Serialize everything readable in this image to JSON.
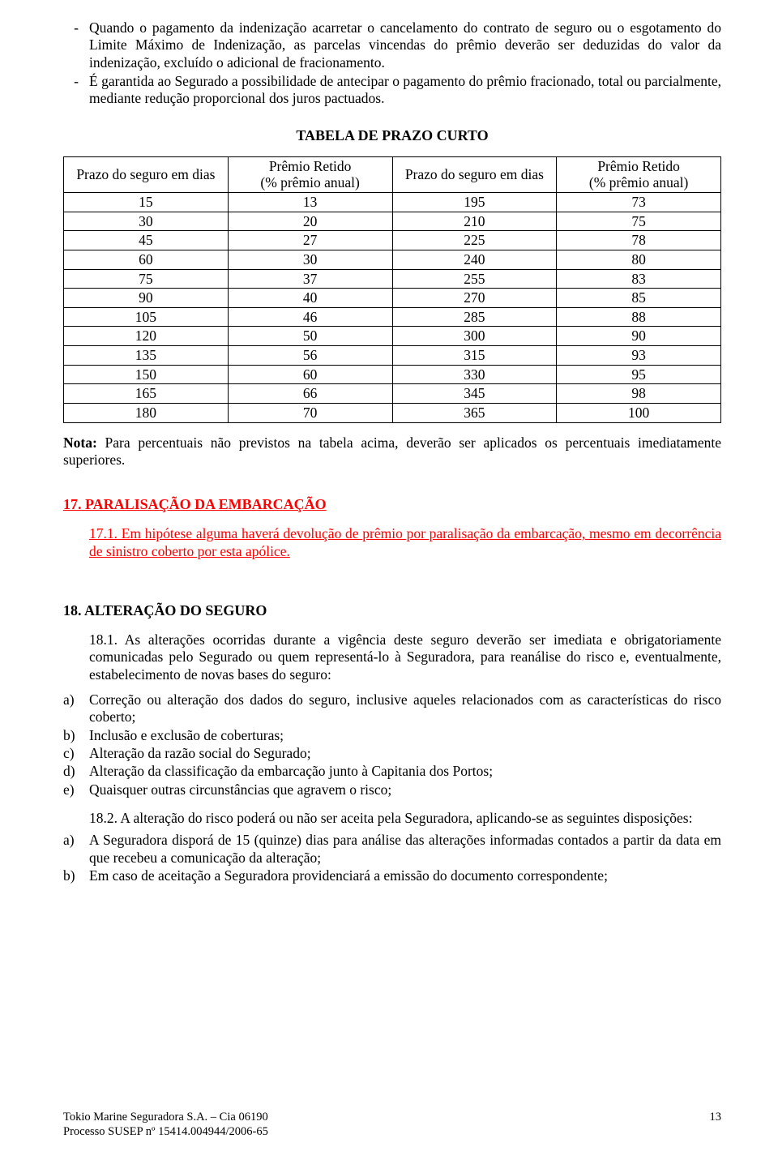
{
  "bullets": {
    "b1": "Quando o pagamento da indenização acarretar o cancelamento do contrato de seguro ou o esgotamento do Limite Máximo de Indenização, as parcelas vincendas do prêmio deverão ser deduzidas do valor da indenização, excluído o adicional de fracionamento.",
    "b2": "É garantida ao Segurado a possibilidade de antecipar o pagamento do prêmio fracionado, total ou parcialmente, mediante redução proporcional dos juros pactuados."
  },
  "table": {
    "title": "TABELA DE PRAZO CURTO",
    "columns": {
      "c1": "Prazo do seguro em dias",
      "c2_line1": "Prêmio Retido",
      "c2_line2": "(% prêmio anual)",
      "c3": "Prazo do seguro em dias",
      "c4_line1": "Prêmio Retido",
      "c4_line2": "(% prêmio anual)"
    },
    "rows": [
      {
        "a": "15",
        "b": "13",
        "c": "195",
        "d": "73"
      },
      {
        "a": "30",
        "b": "20",
        "c": "210",
        "d": "75"
      },
      {
        "a": "45",
        "b": "27",
        "c": "225",
        "d": "78"
      },
      {
        "a": "60",
        "b": "30",
        "c": "240",
        "d": "80"
      },
      {
        "a": "75",
        "b": "37",
        "c": "255",
        "d": "83"
      },
      {
        "a": "90",
        "b": "40",
        "c": "270",
        "d": "85"
      },
      {
        "a": "105",
        "b": "46",
        "c": "285",
        "d": "88"
      },
      {
        "a": "120",
        "b": "50",
        "c": "300",
        "d": "90"
      },
      {
        "a": "135",
        "b": "56",
        "c": "315",
        "d": "93"
      },
      {
        "a": "150",
        "b": "60",
        "c": "330",
        "d": "95"
      },
      {
        "a": "165",
        "b": "66",
        "c": "345",
        "d": "98"
      },
      {
        "a": "180",
        "b": "70",
        "c": "365",
        "d": "100"
      }
    ]
  },
  "nota_label": "Nota:",
  "nota": " Para percentuais não previstos na tabela acima, deverão ser aplicados os percentuais imediatamente  superiores.",
  "sec17": {
    "heading": "17. PARALISAÇÃO DA EMBARCAÇÃO",
    "p1": "17.1. Em  hipótese alguma haverá devolução de prêmio por paralisação da embarcação, mesmo em decorrência de sinistro coberto por esta apólice."
  },
  "sec18": {
    "heading": "18.   ALTERAÇÃO DO SEGURO",
    "p1": "18.1. As alterações ocorridas durante a vigência deste seguro deverão ser imediata e obrigatoriamente comunicadas pelo Segurado ou quem representá-lo à Seguradora, para reanálise do risco e, eventualmente, estabelecimento de novas bases do seguro:",
    "items": {
      "a": "Correção ou alteração dos dados do seguro, inclusive aqueles relacionados com as características do risco coberto;",
      "b": "Inclusão e exclusão de coberturas;",
      "c": "Alteração da razão social do Segurado;",
      "d": "Alteração da classificação da embarcação junto à Capitania dos Portos;",
      "e": "Quaisquer outras circunstâncias que agravem o risco;"
    },
    "p2": "18.2. A alteração do risco poderá ou não ser aceita pela Seguradora, aplicando-se as seguintes disposições:",
    "items2": {
      "a": "A Seguradora disporá de 15 (quinze) dias para análise das alterações informadas contados a partir da data em que recebeu a comunicação da alteração;",
      "b": "Em caso de aceitação a Seguradora providenciará a emissão do documento correspondente;"
    }
  },
  "footer": {
    "line1": "Tokio Marine Seguradora S.A. – Cia 06190",
    "line2": "Processo SUSEP nº 15414.004944/2006-65",
    "page": "13"
  },
  "marks": {
    "dash": "-",
    "a": "a)",
    "b": "b)",
    "c": "c)",
    "d": "d)",
    "e": "e)"
  }
}
